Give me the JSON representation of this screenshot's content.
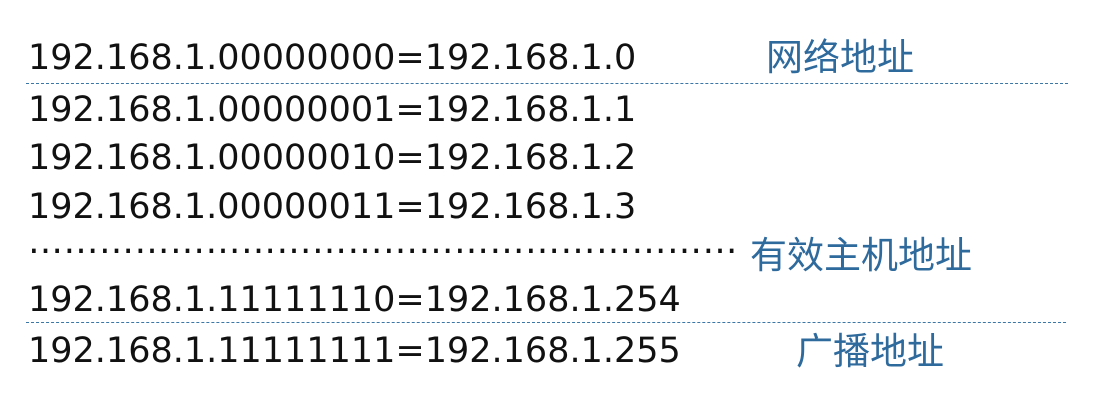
{
  "rows": [
    "192.168.1.00000000=192.168.1.0",
    "192.168.1.00000001=192.168.1.1",
    "192.168.1.00000010=192.168.1.2",
    "192.168.1.00000011=192.168.1.3",
    "192.168.1.11111110=192.168.1.254",
    "192.168.1.11111111=192.168.1.255"
  ],
  "ellipsis": "……………………………………………………",
  "labels": {
    "network": "网络地址",
    "host": "有效主机地址",
    "broadcast": "广播地址"
  },
  "colors": {
    "text": "#111111",
    "label": "#2f6a9d",
    "divider": "#3b77a6"
  }
}
